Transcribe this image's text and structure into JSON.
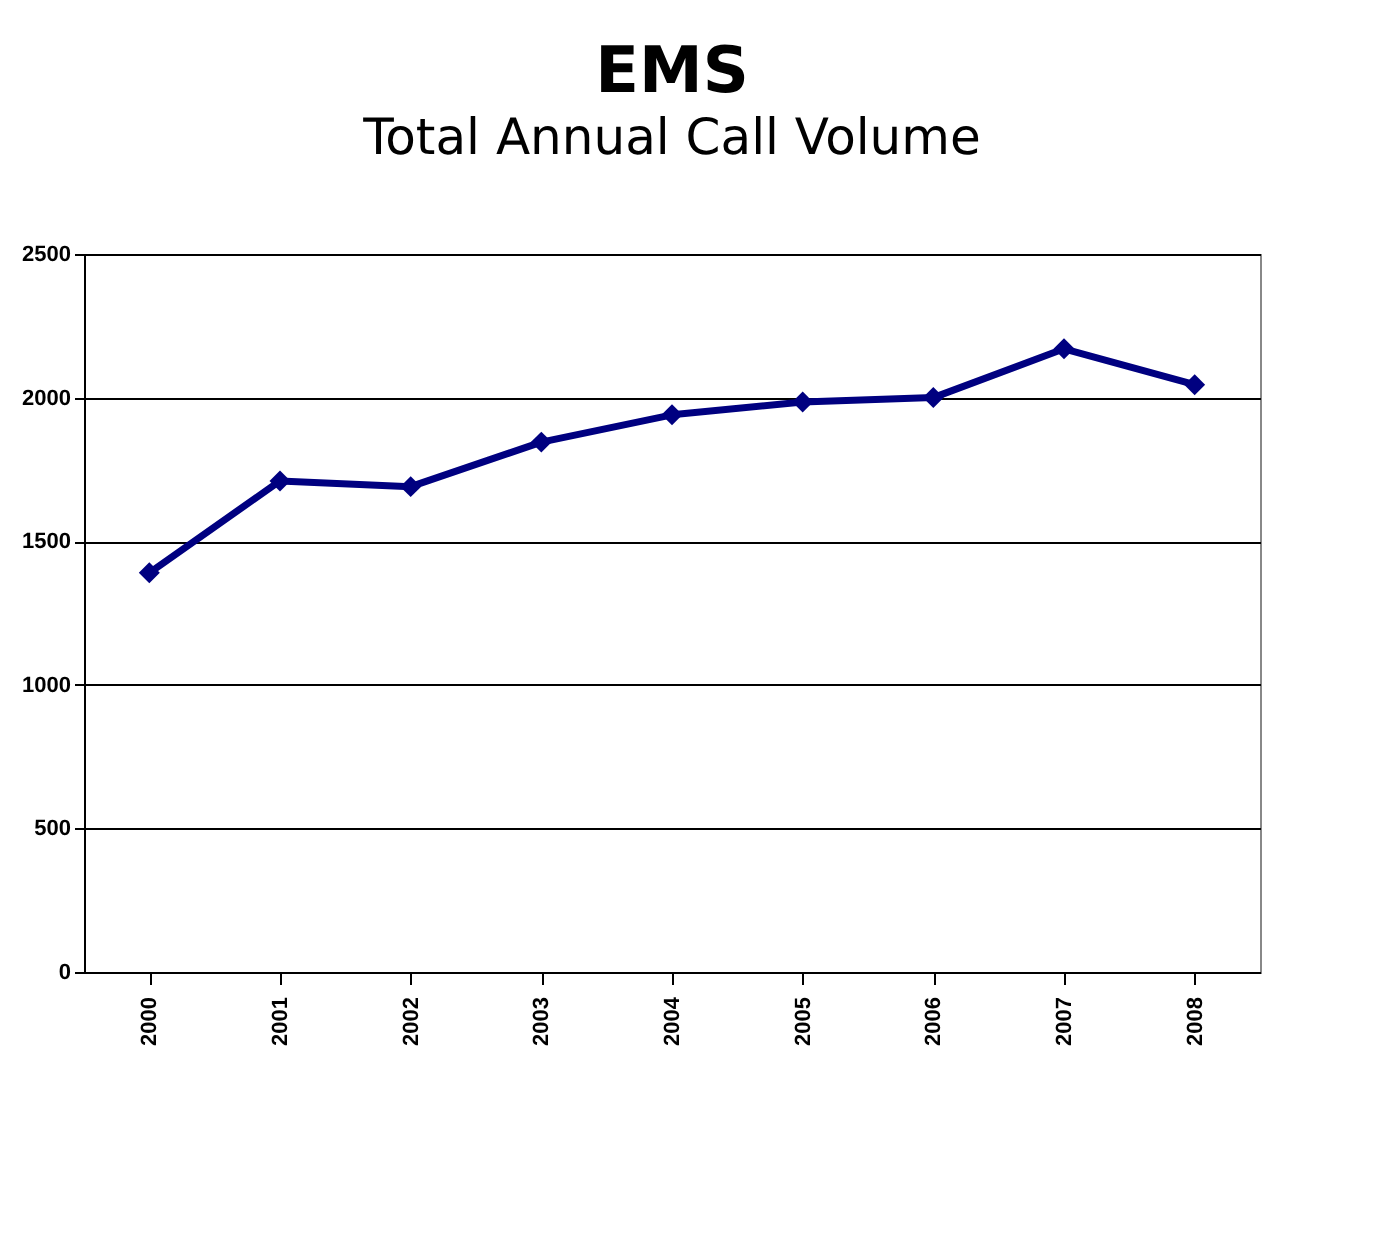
{
  "chart_data": {
    "type": "line",
    "title": "EMS",
    "subtitle": "Total Annual Call Volume",
    "categories": [
      "2000",
      "2001",
      "2002",
      "2003",
      "2004",
      "2005",
      "2006",
      "2007",
      "2008"
    ],
    "series": [
      {
        "color": "#000080",
        "values": [
          1390,
          1710,
          1690,
          1845,
          1940,
          1985,
          2000,
          2170,
          2045
        ]
      }
    ],
    "ylim": [
      0,
      2500
    ],
    "yticks": [
      0,
      500,
      1000,
      1500,
      2000,
      2500
    ],
    "grid": "y",
    "marker": "diamond",
    "line_style": "solid",
    "legend": false
  }
}
